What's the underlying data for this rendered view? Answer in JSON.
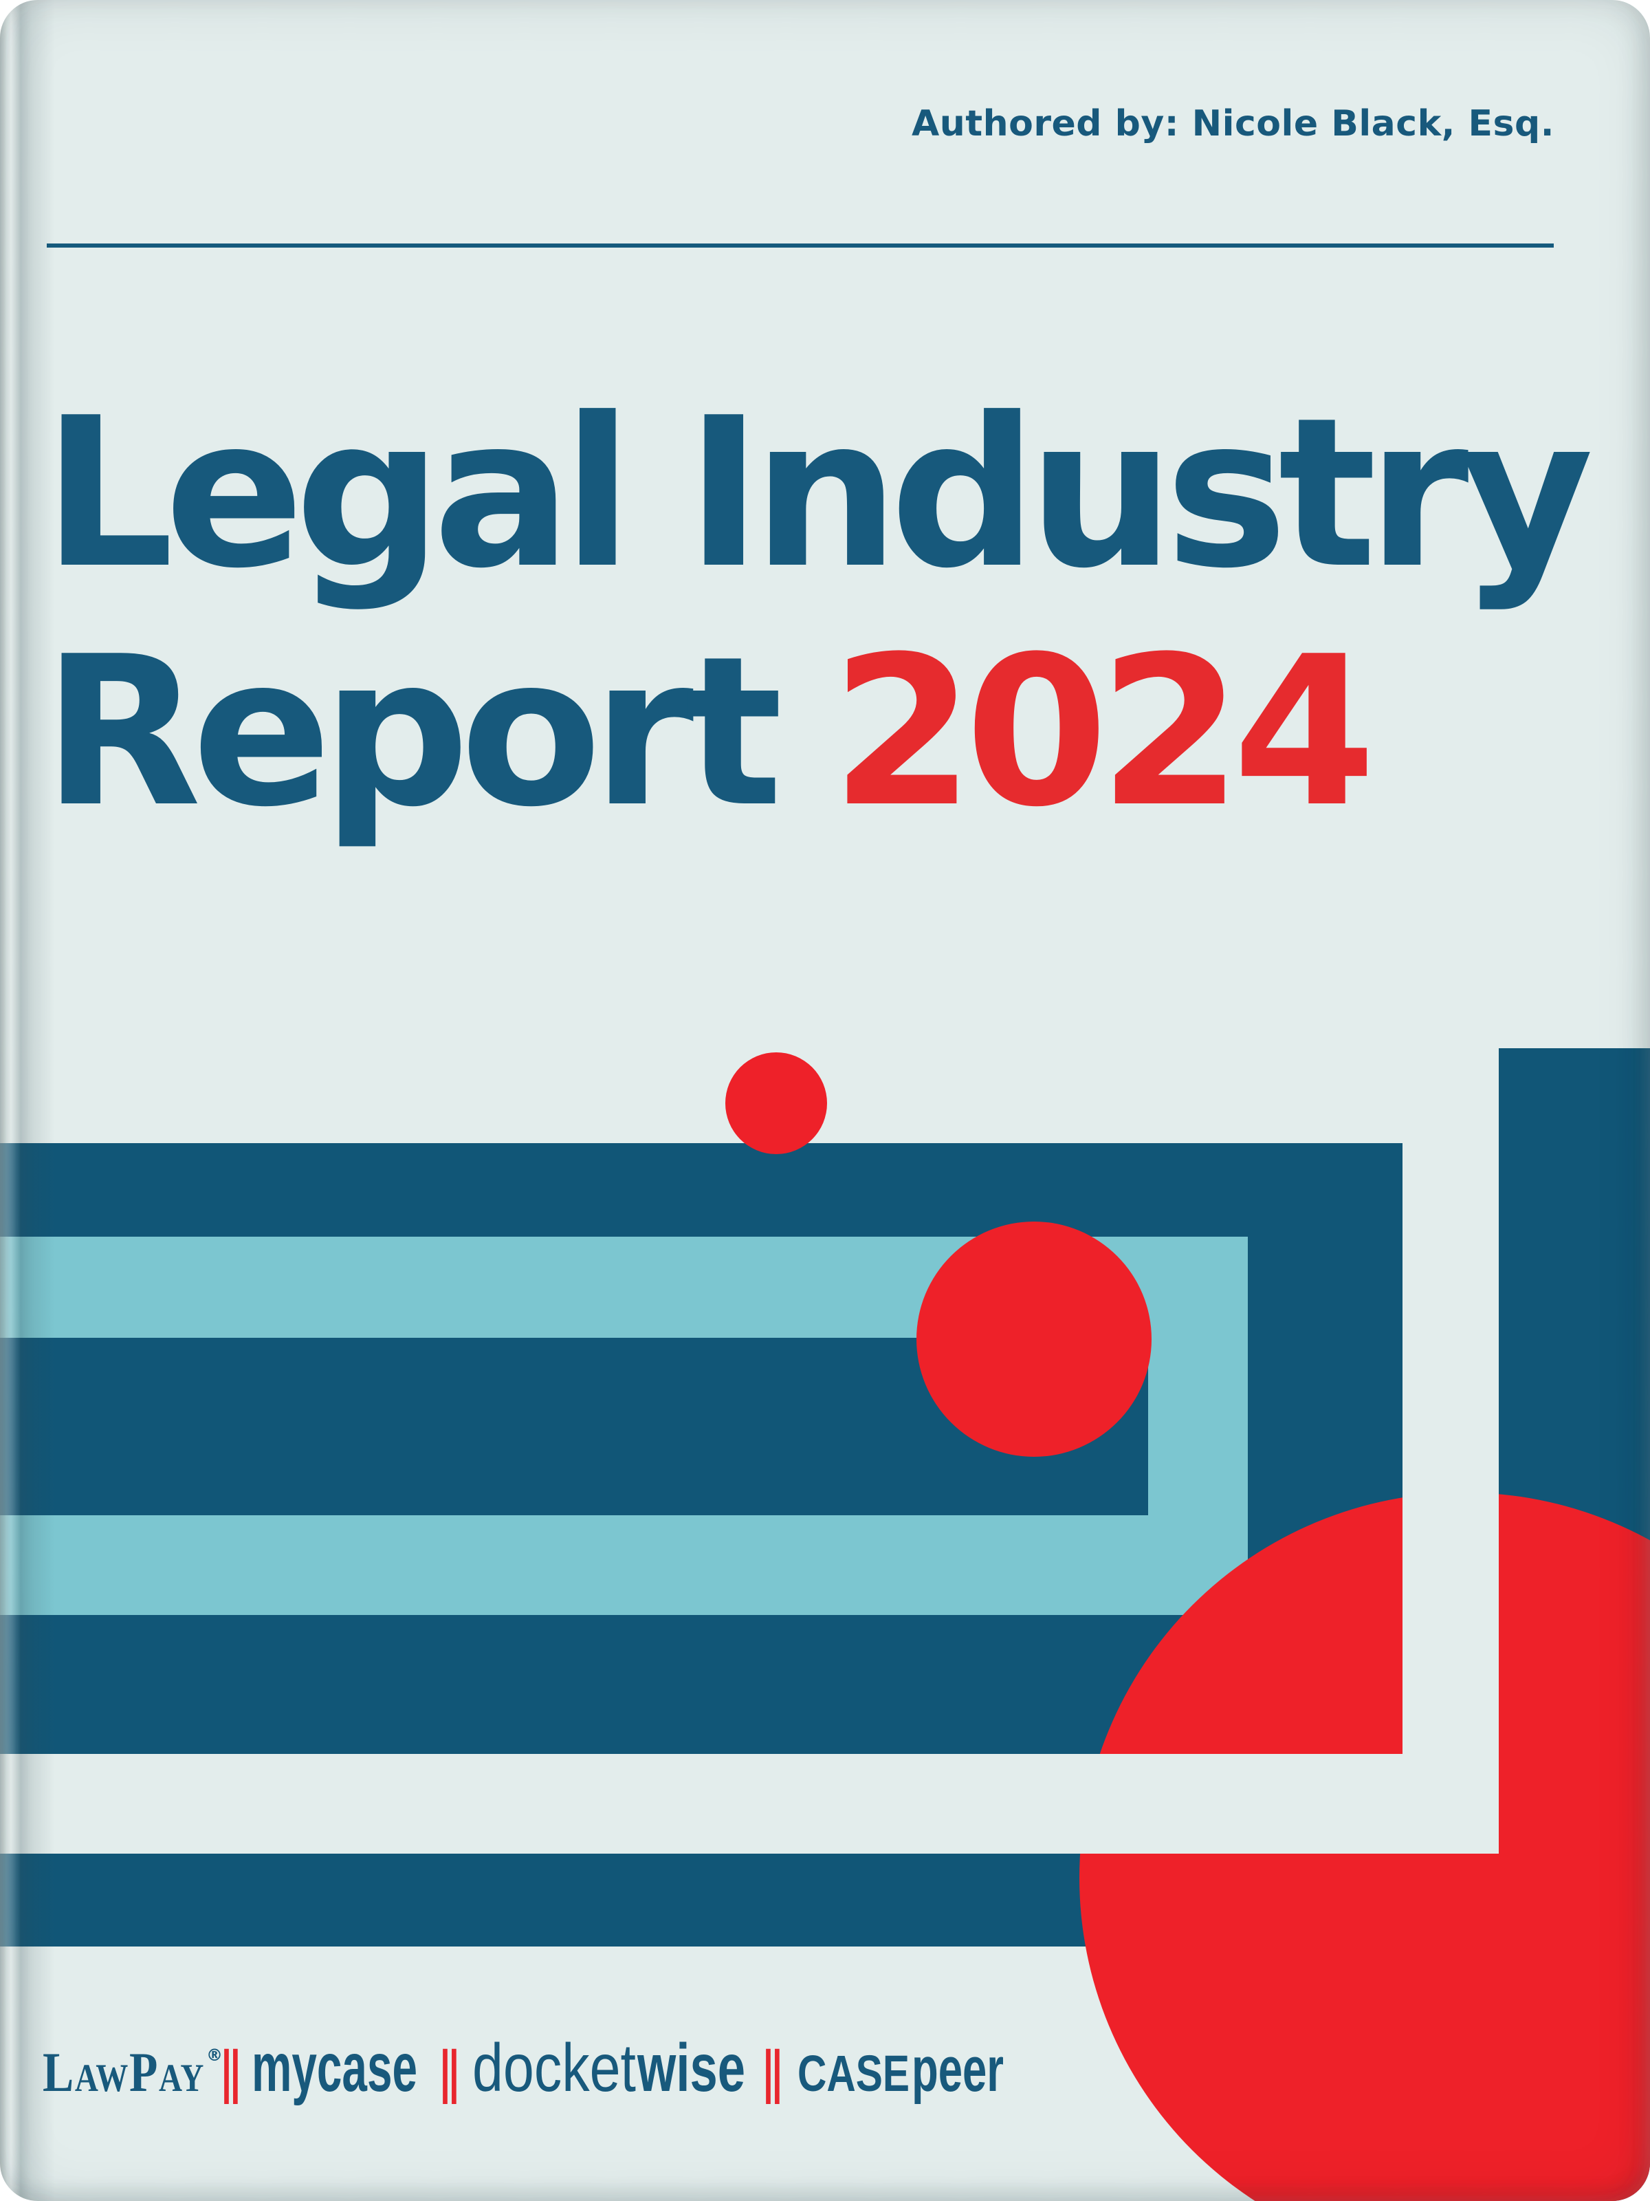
{
  "cover": {
    "authored_by": "Authored by: Nicole Black, Esq.",
    "title": {
      "line1": "Legal Industry",
      "line2_prefix": "Report",
      "line2_year": "2024"
    },
    "logos": {
      "separator": "‖",
      "lawpay": "LawPay",
      "lawpay_reg": "®",
      "mycase": "mycase",
      "docketwise_light": "docket",
      "docketwise_bold": "wise",
      "casepeer_caps": "CASE",
      "casepeer_rest": "peer"
    },
    "colors": {
      "background": "#E3EDEC",
      "teal_dark": "#115677",
      "teal_text": "#18597C",
      "light_blue": "#7CC6D0",
      "red": "#EE2129"
    }
  }
}
